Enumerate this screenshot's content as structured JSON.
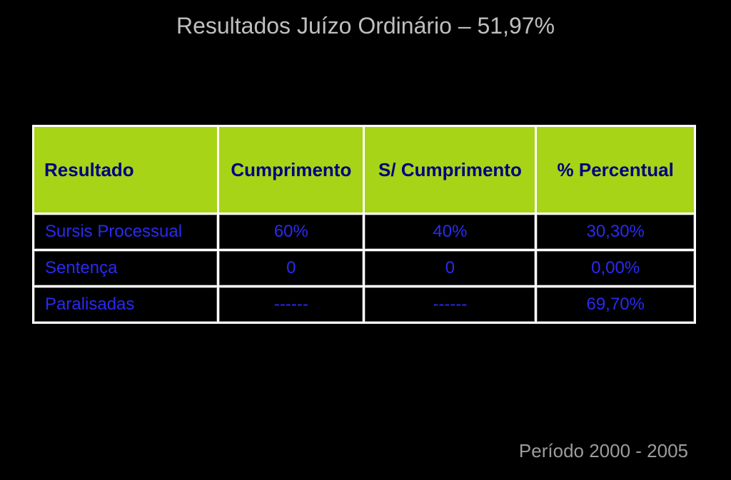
{
  "title": "Resultados Juízo Ordinário – 51,97%",
  "footer": "Período 2000 - 2005",
  "table": {
    "header_bg": "#a7d417",
    "header_fg": "#000080",
    "cell_bg": "#000000",
    "cell_fg": "#2a2af0",
    "border_color": "#4d4d4d",
    "title_color": "#bfbfbf",
    "footer_color": "#9c9c9c",
    "header_fontsize": 26,
    "cell_fontsize": 24,
    "columns": [
      "Resultado",
      "Cumprimento",
      "S/ Cumprimento",
      "% Percentual"
    ],
    "col_widths_pct": [
      28,
      22,
      26,
      24
    ],
    "col_align": [
      "left",
      "center",
      "center",
      "center"
    ],
    "rows": [
      [
        "Sursis Processual",
        "60%",
        "40%",
        "30,30%"
      ],
      [
        "Sentença",
        "0",
        "0",
        "0,00%"
      ],
      [
        "Paralisadas",
        "------",
        "------",
        "69,70%"
      ]
    ]
  }
}
